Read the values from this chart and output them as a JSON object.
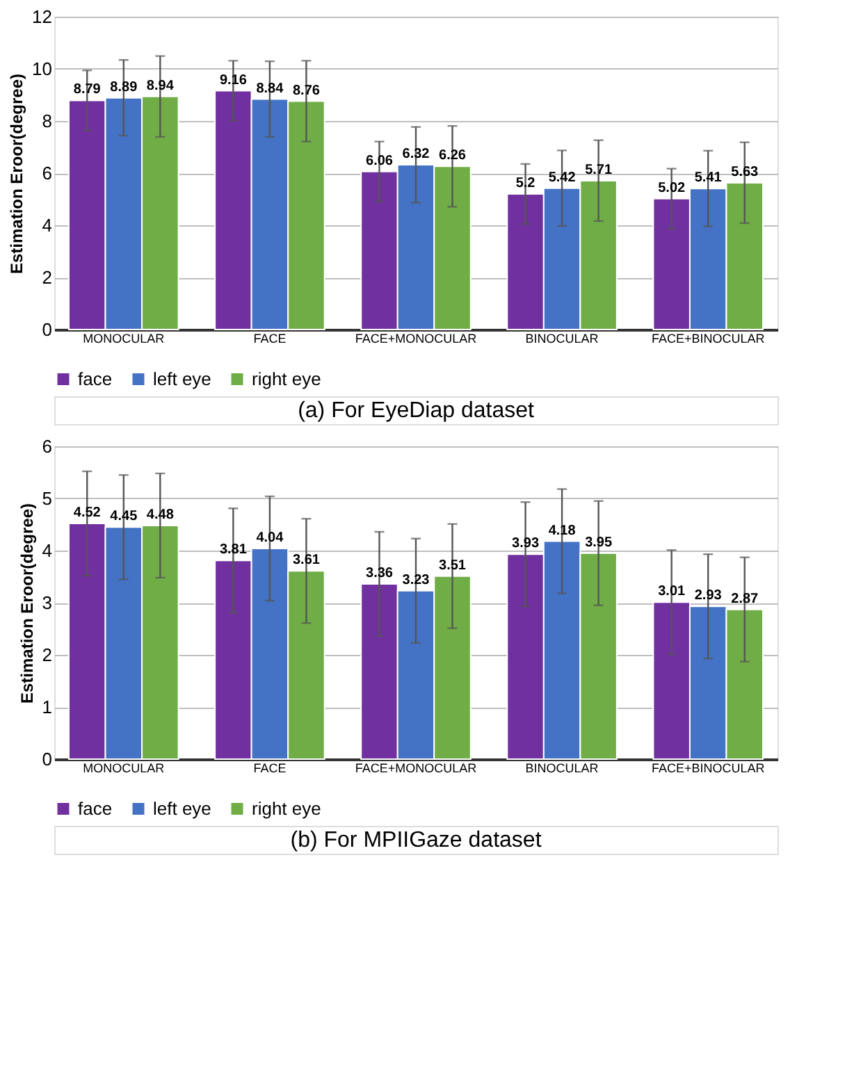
{
  "chart_data": [
    {
      "type": "bar",
      "ylabel": "Estimation Eroor(degree)",
      "categories": [
        "MONOCULAR",
        "FACE",
        "FACE+MONOCULAR",
        "BINOCULAR",
        "FACE+BINOCULAR"
      ],
      "series": [
        {
          "name": "face",
          "color": "#7030a0",
          "values": [
            8.79,
            9.16,
            6.06,
            5.2,
            5.02
          ],
          "errors": [
            1.15,
            1.15,
            1.15,
            1.15,
            1.15
          ]
        },
        {
          "name": "left eye",
          "color": "#4472c4",
          "values": [
            8.89,
            8.84,
            6.32,
            5.42,
            5.41
          ],
          "errors": [
            1.45,
            1.45,
            1.45,
            1.45,
            1.45
          ]
        },
        {
          "name": "right eye",
          "color": "#70ad47",
          "values": [
            8.94,
            8.76,
            6.26,
            5.71,
            5.63
          ],
          "errors": [
            1.55,
            1.55,
            1.55,
            1.55,
            1.55
          ]
        }
      ],
      "ylim": [
        0,
        12
      ],
      "yticks": [
        0,
        2,
        4,
        6,
        8,
        10,
        12
      ],
      "grid": "y",
      "legend": "bottom",
      "data_labels": true,
      "annotations": [
        "(a) For EyeDiap dataset"
      ]
    },
    {
      "type": "bar",
      "ylabel": "Estimation Eroor(degree)",
      "categories": [
        "MONOCULAR",
        "FACE",
        "FACE+MONOCULAR",
        "BINOCULAR",
        "FACE+BINOCULAR"
      ],
      "series": [
        {
          "name": "face",
          "color": "#7030a0",
          "values": [
            4.52,
            3.81,
            3.36,
            3.93,
            3.01
          ],
          "errors": [
            1.0,
            1.0,
            1.0,
            1.0,
            1.0
          ]
        },
        {
          "name": "left eye",
          "color": "#4472c4",
          "values": [
            4.45,
            4.04,
            3.23,
            4.18,
            2.93
          ],
          "errors": [
            1.0,
            1.0,
            1.0,
            1.0,
            1.0
          ]
        },
        {
          "name": "right eye",
          "color": "#70ad47",
          "values": [
            4.48,
            3.61,
            3.51,
            3.95,
            2.87
          ],
          "errors": [
            1.0,
            1.0,
            1.0,
            1.0,
            1.0
          ]
        }
      ],
      "ylim": [
        0,
        6
      ],
      "yticks": [
        0,
        1,
        2,
        3,
        4,
        5,
        6
      ],
      "grid": "y",
      "legend": "bottom",
      "data_labels": true,
      "annotations": [
        "(b) For MPIIGaze dataset"
      ]
    }
  ]
}
